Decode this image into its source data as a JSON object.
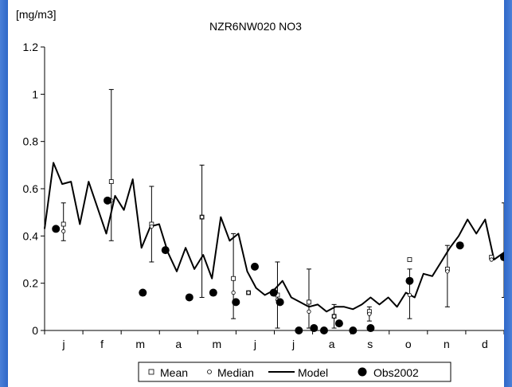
{
  "chart_data": {
    "type": "line",
    "title": "NZR6NW020  NO3",
    "ylabel": "[mg/m3]",
    "ylim": [
      0,
      1.2
    ],
    "yticks": [
      "0",
      "0.2",
      "0.4",
      "0.6",
      "0.8",
      "1",
      "1.2"
    ],
    "x_range_days": [
      0,
      365
    ],
    "months": [
      "j",
      "f",
      "m",
      "a",
      "m",
      "j",
      "j",
      "a",
      "s",
      "o",
      "n",
      "d"
    ],
    "legend": {
      "position": "bottom",
      "items": [
        "Mean",
        "Median",
        "Model",
        "Obs2002"
      ]
    },
    "model": {
      "name": "Model",
      "x": [
        0,
        7,
        14,
        21,
        28,
        35,
        42,
        49,
        56,
        63,
        70,
        77,
        84,
        91,
        98,
        105,
        112,
        119,
        126,
        133,
        140,
        147,
        154,
        161,
        168,
        175,
        182,
        189,
        196,
        203,
        210,
        217,
        224,
        231,
        238,
        245,
        252,
        259,
        266,
        273,
        280,
        287,
        294,
        301,
        308,
        315,
        322,
        329,
        336,
        343,
        350,
        357,
        365
      ],
      "y": [
        0.43,
        0.71,
        0.62,
        0.63,
        0.45,
        0.63,
        0.52,
        0.41,
        0.57,
        0.51,
        0.64,
        0.35,
        0.44,
        0.45,
        0.33,
        0.25,
        0.35,
        0.26,
        0.32,
        0.22,
        0.48,
        0.38,
        0.41,
        0.25,
        0.18,
        0.15,
        0.17,
        0.21,
        0.14,
        0.12,
        0.1,
        0.11,
        0.08,
        0.1,
        0.1,
        0.09,
        0.11,
        0.14,
        0.11,
        0.14,
        0.1,
        0.16,
        0.14,
        0.24,
        0.23,
        0.29,
        0.35,
        0.4,
        0.47,
        0.41,
        0.47,
        0.3,
        0.33
      ]
    },
    "mean": {
      "name": "Mean",
      "x": [
        15,
        53,
        85,
        125,
        150,
        162,
        185,
        210,
        230,
        258,
        290,
        320,
        355
      ],
      "y": [
        0.45,
        0.63,
        0.45,
        0.48,
        0.22,
        0.16,
        0.15,
        0.12,
        0.06,
        0.08,
        0.3,
        0.26,
        0.31
      ]
    },
    "median": {
      "name": "Median",
      "x": [
        15,
        53,
        85,
        125,
        150,
        162,
        185,
        210,
        230,
        258,
        290,
        320,
        355
      ],
      "y": [
        0.42,
        0.55,
        0.44,
        0.48,
        0.16,
        0.16,
        0.13,
        0.08,
        0.06,
        0.07,
        0.15,
        0.25,
        0.3
      ]
    },
    "errorbars": {
      "x": [
        15,
        53,
        85,
        125,
        150,
        185,
        210,
        230,
        258,
        290,
        320,
        365
      ],
      "low": [
        0.38,
        0.38,
        0.29,
        0.14,
        0.05,
        0.01,
        0.01,
        0.01,
        0.04,
        0.05,
        0.1,
        0.14
      ],
      "high": [
        0.54,
        1.02,
        0.61,
        0.7,
        0.41,
        0.29,
        0.26,
        0.11,
        0.1,
        0.26,
        0.36,
        0.54
      ]
    },
    "obs2002": {
      "name": "Obs2002",
      "x": [
        9,
        50,
        78,
        96,
        115,
        134,
        152,
        167,
        182,
        187,
        202,
        214,
        222,
        234,
        245,
        259,
        290,
        330,
        365
      ],
      "y": [
        0.43,
        0.55,
        0.16,
        0.34,
        0.14,
        0.16,
        0.12,
        0.27,
        0.16,
        0.12,
        0.0,
        0.01,
        0.0,
        0.03,
        0.0,
        0.01,
        0.21,
        0.36,
        0.31
      ]
    }
  }
}
